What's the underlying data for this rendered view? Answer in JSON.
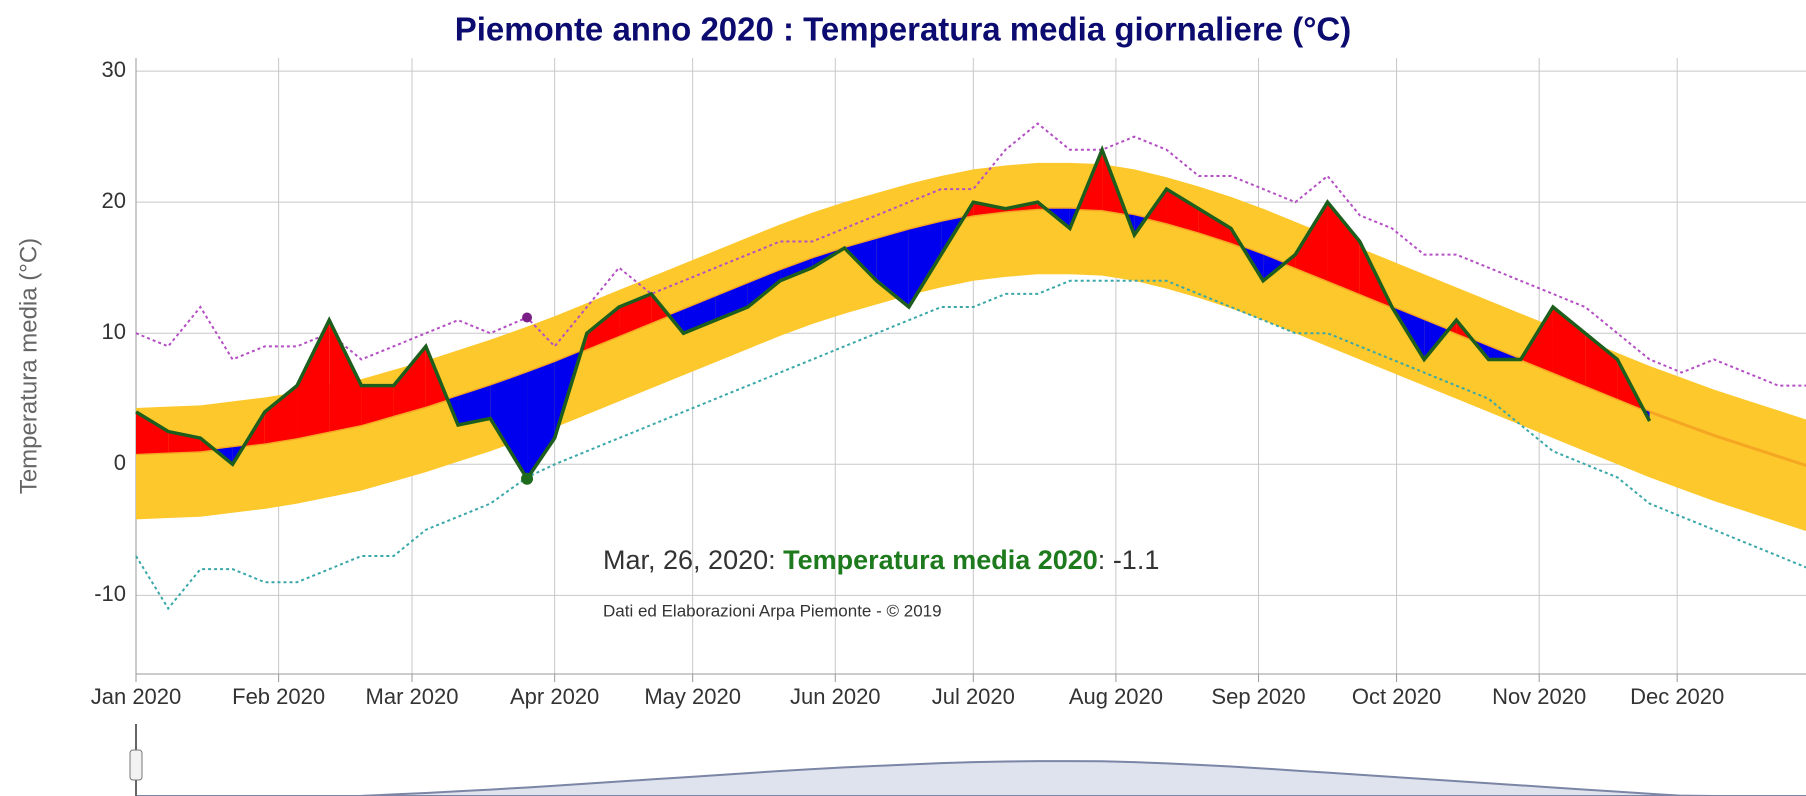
{
  "chart_data": {
    "type": "line",
    "title": "Piemonte anno 2020 : Temperatura media giornaliere (°C)",
    "y_label": "Temperatura media (°C)",
    "credits": "Dati ed Elaborazioni Arpa Piemonte - © 2019",
    "x": [
      "2020-01-01",
      "2020-01-08",
      "2020-01-15",
      "2020-01-22",
      "2020-01-29",
      "2020-02-05",
      "2020-02-12",
      "2020-02-19",
      "2020-02-26",
      "2020-03-04",
      "2020-03-11",
      "2020-03-18",
      "2020-03-26",
      "2020-04-01",
      "2020-04-08",
      "2020-04-15",
      "2020-04-22",
      "2020-04-29",
      "2020-05-06",
      "2020-05-13",
      "2020-05-20",
      "2020-05-27",
      "2020-06-03",
      "2020-06-10",
      "2020-06-17",
      "2020-06-24",
      "2020-07-01",
      "2020-07-08",
      "2020-07-15",
      "2020-07-22",
      "2020-07-29",
      "2020-08-05",
      "2020-08-12",
      "2020-08-19",
      "2020-08-26",
      "2020-09-02",
      "2020-09-09",
      "2020-09-16",
      "2020-09-23",
      "2020-09-30",
      "2020-10-07",
      "2020-10-14",
      "2020-10-21",
      "2020-10-28",
      "2020-11-04",
      "2020-11-11",
      "2020-11-18",
      "2020-11-25",
      "2020-12-02",
      "2020-12-09",
      "2020-12-16",
      "2020-12-23",
      "2020-12-30"
    ],
    "xlim": [
      "2020-01-01",
      "2020-12-29"
    ],
    "xticks": [
      {
        "value": "2020-01-01",
        "label": "Jan 2020"
      },
      {
        "value": "2020-02-01",
        "label": "Feb 2020"
      },
      {
        "value": "2020-03-01",
        "label": "Mar 2020"
      },
      {
        "value": "2020-04-01",
        "label": "Apr 2020"
      },
      {
        "value": "2020-05-01",
        "label": "May 2020"
      },
      {
        "value": "2020-06-01",
        "label": "Jun 2020"
      },
      {
        "value": "2020-07-01",
        "label": "Jul 2020"
      },
      {
        "value": "2020-08-01",
        "label": "Aug 2020"
      },
      {
        "value": "2020-09-01",
        "label": "Sep 2020"
      },
      {
        "value": "2020-10-01",
        "label": "Oct 2020"
      },
      {
        "value": "2020-11-01",
        "label": "Nov 2020"
      },
      {
        "value": "2020-12-01",
        "label": "Dec 2020"
      }
    ],
    "ylim": [
      -16,
      31
    ],
    "yticks": [
      -10,
      0,
      10,
      20,
      30
    ],
    "grid": true,
    "series": [
      {
        "name": "Temperatura media 2020",
        "color": "#1d5e1d",
        "above_color": "#ff0000",
        "below_color": "#0000ee",
        "values": [
          4,
          2.5,
          2,
          0,
          4,
          6,
          11,
          6,
          6,
          9,
          3,
          3.5,
          -1.1,
          2,
          10,
          12,
          13,
          10,
          11,
          12,
          14,
          15,
          16.5,
          14,
          12,
          16,
          20,
          19.5,
          20,
          18,
          24,
          17.5,
          21,
          19.5,
          18,
          14,
          16,
          20,
          17,
          12,
          8,
          11,
          8,
          8,
          12,
          10,
          8,
          3.3,
          null,
          null,
          null,
          null,
          null
        ]
      }
    ],
    "mean": {
      "color": "#f5a623",
      "values": [
        0.8,
        0.9,
        1.0,
        1.3,
        1.6,
        2.0,
        2.5,
        3.0,
        3.7,
        4.4,
        5.2,
        6.0,
        7.0,
        7.8,
        8.8,
        9.8,
        10.8,
        11.8,
        12.8,
        13.8,
        14.8,
        15.7,
        16.5,
        17.2,
        17.9,
        18.5,
        19.0,
        19.3,
        19.5,
        19.5,
        19.4,
        19.0,
        18.4,
        17.7,
        16.9,
        16.0,
        15.0,
        14.0,
        13.0,
        12.0,
        11.0,
        10.0,
        9.0,
        8.0,
        7.0,
        6.0,
        5.0,
        4.0,
        3.1,
        2.2,
        1.4,
        0.6,
        -0.2
      ]
    },
    "band": {
      "color": "#fdc82c",
      "upper": [
        4.3,
        4.4,
        4.5,
        4.8,
        5.1,
        5.5,
        6.0,
        6.5,
        7.2,
        7.9,
        8.7,
        9.5,
        10.5,
        11.3,
        12.3,
        13.3,
        14.3,
        15.3,
        16.3,
        17.3,
        18.3,
        19.2,
        20.0,
        20.7,
        21.4,
        22.0,
        22.5,
        22.8,
        23.0,
        23.0,
        22.9,
        22.5,
        21.9,
        21.2,
        20.4,
        19.5,
        18.5,
        17.5,
        16.5,
        15.5,
        14.5,
        13.5,
        12.5,
        11.5,
        10.5,
        9.5,
        8.5,
        7.5,
        6.6,
        5.7,
        4.9,
        4.1,
        3.3
      ],
      "lower": [
        -4.2,
        -4.1,
        -4.0,
        -3.7,
        -3.4,
        -3.0,
        -2.5,
        -2.0,
        -1.3,
        -0.6,
        0.2,
        1.0,
        2.0,
        2.8,
        3.8,
        4.8,
        5.8,
        6.8,
        7.8,
        8.8,
        9.8,
        10.7,
        11.5,
        12.2,
        12.9,
        13.5,
        14.0,
        14.3,
        14.5,
        14.5,
        14.4,
        14.0,
        13.4,
        12.7,
        11.9,
        11.0,
        10.0,
        9.0,
        8.0,
        7.0,
        6.0,
        5.0,
        4.0,
        3.0,
        2.0,
        1.0,
        0.0,
        -1.0,
        -1.9,
        -2.8,
        -3.6,
        -4.4,
        -5.2
      ]
    },
    "record_max": {
      "color": "#b44fc4",
      "values": [
        10,
        9,
        12,
        8,
        9,
        9,
        10,
        8,
        9,
        10,
        11,
        10,
        11.2,
        9,
        12,
        15,
        13,
        14,
        15,
        16,
        17,
        17,
        18,
        19,
        20,
        21,
        21,
        24,
        26,
        24,
        24,
        25,
        24,
        22,
        22,
        21,
        20,
        22,
        19,
        18,
        16,
        16,
        15,
        14,
        13,
        12,
        10,
        8,
        7,
        8,
        7,
        6,
        6
      ]
    },
    "record_min": {
      "color": "#3aa8a8",
      "values": [
        -7,
        -11,
        -8,
        -8,
        -9,
        -9,
        -8,
        -7,
        -7,
        -5,
        -4,
        -3,
        -1,
        0,
        1,
        2,
        3,
        4,
        5,
        6,
        7,
        8,
        9,
        10,
        11,
        12,
        12,
        13,
        13,
        14,
        14,
        14,
        14,
        13,
        12,
        11,
        10,
        10,
        9,
        8,
        7,
        6,
        5,
        3,
        1,
        0,
        -1,
        -3,
        -4,
        -5,
        -6,
        -7,
        -8
      ]
    },
    "tooltip": {
      "date": "Mar, 26, 2020",
      "separator": ": "
    }
  }
}
